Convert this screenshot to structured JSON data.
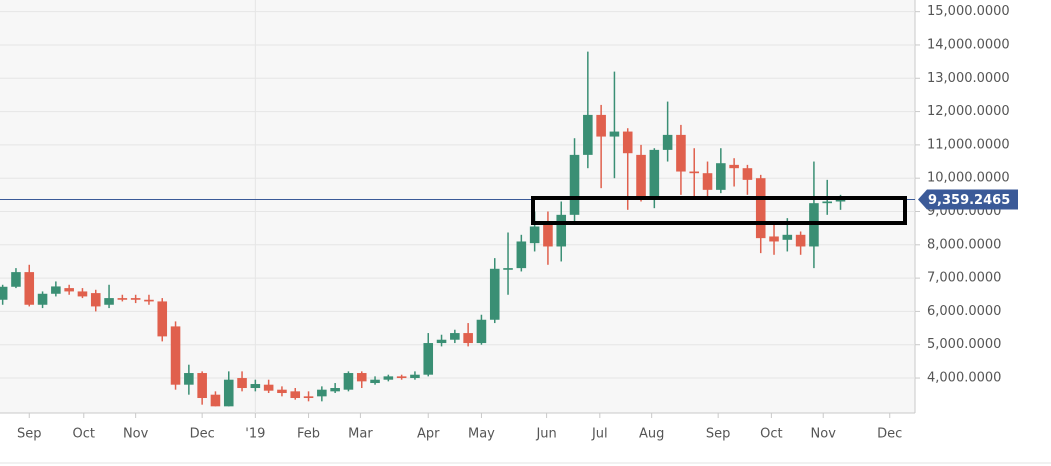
{
  "chart_data": {
    "type": "candlestick",
    "up_color": "#3a8f74",
    "down_color": "#e0604d",
    "grid": true,
    "categories": [
      null,
      null,
      null,
      null,
      null,
      null,
      null,
      null,
      null,
      null,
      null,
      null,
      null,
      null,
      null,
      null,
      null,
      null,
      null,
      null,
      null,
      null,
      null,
      null,
      null,
      null,
      null,
      null,
      null,
      null,
      null,
      null,
      null,
      null,
      null,
      null,
      null,
      null,
      null,
      null,
      null,
      null,
      null,
      null,
      null,
      null,
      null,
      null,
      null,
      null,
      null,
      null,
      null,
      null,
      null,
      null,
      null,
      null,
      null,
      null,
      null,
      null,
      null,
      null
    ],
    "open": [
      6350,
      6740,
      7180,
      6200,
      6530,
      6700,
      6600,
      6550,
      6200,
      6400,
      6400,
      6350,
      6300,
      5550,
      3800,
      4150,
      3500,
      3150,
      4000,
      3700,
      3800,
      3650,
      3600,
      3450,
      3450,
      3600,
      3650,
      4150,
      3850,
      3950,
      4050,
      4000,
      4100,
      5050,
      5150,
      5350,
      5050,
      5750,
      7250,
      7300,
      8050,
      8600,
      7950,
      8900,
      10700,
      11900,
      11250,
      11400,
      10700,
      9400,
      10850,
      11300,
      10200,
      10150,
      9650,
      10400,
      10300,
      10000,
      8250,
      8150,
      8300,
      7950,
      9250,
      9300
    ],
    "high": [
      6800,
      7300,
      7400,
      6600,
      6900,
      6800,
      6700,
      6650,
      6800,
      6500,
      6500,
      6500,
      6400,
      5700,
      4400,
      4200,
      3600,
      4200,
      4200,
      3950,
      3950,
      3750,
      3700,
      3600,
      3750,
      3850,
      4200,
      4200,
      4050,
      4100,
      4100,
      4200,
      5350,
      5300,
      5450,
      5650,
      5900,
      7600,
      8370,
      8300,
      9000,
      9000,
      9300,
      11200,
      13800,
      12200,
      13200,
      11500,
      11000,
      10900,
      12300,
      11600,
      10900,
      10500,
      10900,
      10600,
      10400,
      10100,
      8700,
      8800,
      8400,
      10500,
      9950,
      9500
    ],
    "low": [
      6200,
      6700,
      6150,
      6100,
      6450,
      6500,
      6400,
      6000,
      6100,
      6300,
      6250,
      6200,
      5100,
      3650,
      3500,
      3200,
      3150,
      3150,
      3600,
      3600,
      3550,
      3450,
      3350,
      3300,
      3300,
      3550,
      3600,
      3700,
      3800,
      3900,
      3950,
      3950,
      4050,
      4950,
      5050,
      4950,
      5000,
      5650,
      6500,
      7200,
      7800,
      7400,
      7500,
      8600,
      10300,
      9700,
      10000,
      9050,
      9300,
      9100,
      10500,
      9500,
      9400,
      9450,
      9550,
      9750,
      9500,
      7750,
      7700,
      7800,
      7700,
      7300,
      8900,
      9050
    ],
    "close": [
      6740,
      7180,
      6200,
      6530,
      6750,
      6600,
      6450,
      6150,
      6400,
      6350,
      6350,
      6300,
      5250,
      3800,
      4150,
      3400,
      3150,
      3950,
      3700,
      3820,
      3620,
      3550,
      3400,
      3400,
      3650,
      3700,
      4150,
      3900,
      3950,
      4050,
      4000,
      4100,
      5050,
      5150,
      5350,
      5050,
      5750,
      7280,
      7300,
      8100,
      8550,
      7950,
      8900,
      10700,
      11900,
      11250,
      11400,
      10750,
      9400,
      10850,
      11300,
      10200,
      10150,
      9650,
      10450,
      10300,
      9950,
      8200,
      8100,
      8300,
      7950,
      9250,
      9300,
      9359.2465
    ],
    "xlim": [
      -0.2,
      68.6
    ],
    "xticks": [
      {
        "value": 2.0,
        "label": "Sep"
      },
      {
        "value": 6.1,
        "label": "Oct"
      },
      {
        "value": 10.0,
        "label": "Nov"
      },
      {
        "value": 15.0,
        "label": "Dec"
      },
      {
        "value": 19.0,
        "label": "'19"
      },
      {
        "value": 23.0,
        "label": "Feb"
      },
      {
        "value": 26.9,
        "label": "Mar"
      },
      {
        "value": 32.0,
        "label": "Apr"
      },
      {
        "value": 36.0,
        "label": "May"
      },
      {
        "value": 40.9,
        "label": "Jun"
      },
      {
        "value": 44.9,
        "label": "Jul"
      },
      {
        "value": 48.8,
        "label": "Aug"
      },
      {
        "value": 53.8,
        "label": "Sep"
      },
      {
        "value": 57.8,
        "label": "Oct"
      },
      {
        "value": 61.7,
        "label": "Nov"
      },
      {
        "value": 66.7,
        "label": "Dec"
      }
    ],
    "ylim": [
      2950,
      15350
    ],
    "yticks": [
      {
        "value": 4000,
        "label": "4,000.0000"
      },
      {
        "value": 5000,
        "label": "5,000.0000"
      },
      {
        "value": 6000,
        "label": "6,000.0000"
      },
      {
        "value": 7000,
        "label": "7,000.0000"
      },
      {
        "value": 8000,
        "label": "8,000.0000"
      },
      {
        "value": 9000,
        "label": "9,000.0000"
      },
      {
        "value": 10000,
        "label": "10,000.0000"
      },
      {
        "value": 11000,
        "label": "11,000.0000"
      },
      {
        "value": 12000,
        "label": "12,000.0000"
      },
      {
        "value": 13000,
        "label": "13,000.0000"
      },
      {
        "value": 14000,
        "label": "14,000.0000"
      },
      {
        "value": 15000,
        "label": "15,000.0000"
      }
    ],
    "last_price": {
      "value": 9359.2465,
      "label": "9,359.2465",
      "color": "#3b5a98"
    }
  }
}
